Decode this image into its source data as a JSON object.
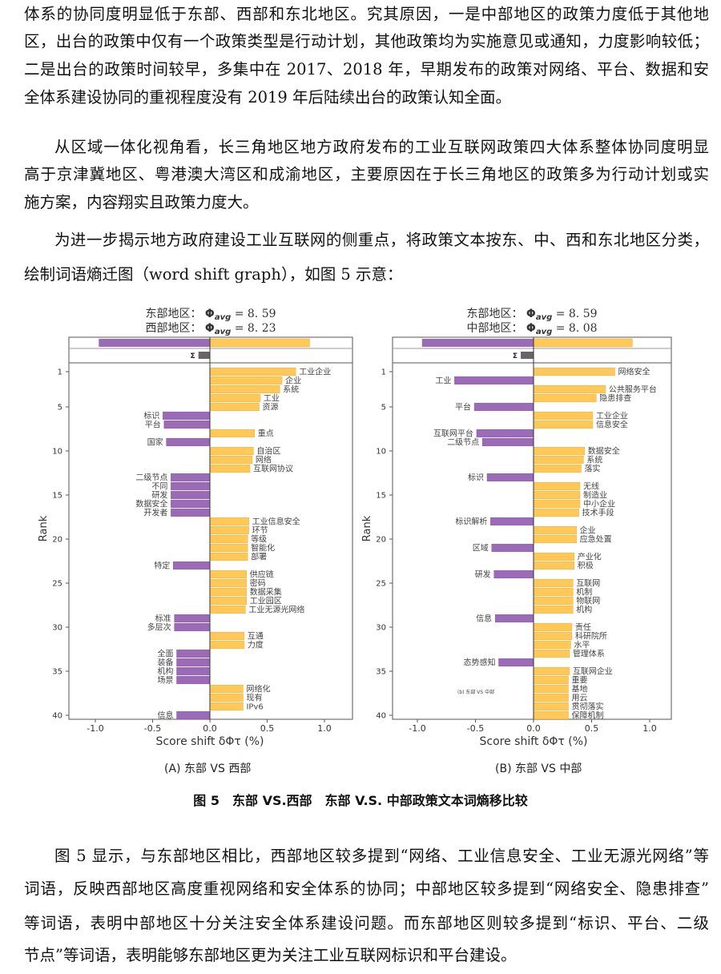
{
  "paragraph1": [
    "体系的协同度明显低于东部、西部和东北地区。究其原因，一是中部地区的政策力度低于其他地",
    "区，出台的政策中仅有一个政策类型是行动计划，其他政策均为实施意见或通知，力度影响较低；",
    "二是出台的政策时间较早，多集中在 2017、2018 年，早期发布的政策对网络、平台、数据和安",
    "全体系建设协同的重视程度没有 2019 年后陆续出台的政策认知全面。"
  ],
  "paragraph2": [
    "从区域一体化视角看，长三角地区地方政府发布的工业互联网政策四大体系整体协同度明显",
    "高于京津冀地区、粤港澳大湾区和成渝地区，主要原因在于长三角地区的政策多为行动计划或实",
    "施方案，内容翔实且政策力度大。"
  ],
  "paragraph3": [
    "为进一步揭示地方政府建设工业互联网的侧重点，将政策文本按东、中、西和东北地区分类，",
    "绘制词语熵迁图（word shift graph），如图 5 示意："
  ],
  "figure": {
    "subcaption_a": "(A) 东部 VS 西部",
    "subcaption_b": "(B) 东部 VS 中部",
    "caption": "图 5　东部 VS.西部　东部 V.S. 中部政策文本词熵移比较"
  },
  "paragraph4": [
    "图 5 显示，与东部地区相比，西部地区较多提到“网络、工业信息安全、工业无源光网络”等",
    "词语，反映西部地区高度重视网络和安全体系的协同；中部地区较多提到“网络安全、隐患排查”",
    "等词语，表明中部地区十分关注安全体系建设问题。而东部地区则较多提到“标识、平台、二级",
    "节点”等词语，表明能够东部地区更为关注工业互联网标识和平台建设。"
  ],
  "chart_data": [
    {
      "type": "bar",
      "orientation": "horizontal",
      "header": [
        {
          "region": "东部地区：",
          "symbol": "Φ",
          "subscript": "avg",
          "value": "= 8. 59"
        },
        {
          "region": "西部地区：",
          "symbol": "Φ",
          "subscript": "avg",
          "value": "= 8. 23"
        }
      ],
      "summary_bars": {
        "negative_total": -0.97,
        "positive_total": 0.87,
        "sigma_label": "Σ",
        "sigma": -0.1
      },
      "xlabel": "Score shift δΦτ (%)",
      "ylabel": "Rank",
      "xlim": [
        -1.23,
        1.24
      ],
      "xticks": [
        "-1.0",
        "-0.5",
        "0.0",
        "0.5",
        "1.0"
      ],
      "yticks": [
        1,
        5,
        10,
        15,
        20,
        25,
        30,
        35,
        40
      ],
      "colors": {
        "positive": "#FFC857",
        "negative": "#9B6BB8",
        "sigma": "#666666"
      },
      "items": [
        {
          "rank": 1,
          "word": "工业企业",
          "value": 0.75
        },
        {
          "rank": 2,
          "word": "企业",
          "value": 0.63
        },
        {
          "rank": 3,
          "word": "系统",
          "value": 0.61
        },
        {
          "rank": 4,
          "word": "工业",
          "value": 0.44
        },
        {
          "rank": 5,
          "word": "资源",
          "value": 0.43
        },
        {
          "rank": 6,
          "word": "标识",
          "value": -0.41
        },
        {
          "rank": 7,
          "word": "平台",
          "value": -0.4
        },
        {
          "rank": 8,
          "word": "重点",
          "value": 0.39
        },
        {
          "rank": 9,
          "word": "国家",
          "value": -0.38
        },
        {
          "rank": 10,
          "word": "自治区",
          "value": 0.38
        },
        {
          "rank": 11,
          "word": "网络",
          "value": 0.37
        },
        {
          "rank": 12,
          "word": "互联网协议",
          "value": 0.35
        },
        {
          "rank": 13,
          "word": "二级节点",
          "value": -0.34
        },
        {
          "rank": 14,
          "word": "不同",
          "value": -0.34
        },
        {
          "rank": 15,
          "word": "研发",
          "value": -0.34
        },
        {
          "rank": 16,
          "word": "数据安全",
          "value": -0.34
        },
        {
          "rank": 17,
          "word": "开发者",
          "value": -0.34
        },
        {
          "rank": 18,
          "word": "工业信息安全",
          "value": 0.34
        },
        {
          "rank": 19,
          "word": "环节",
          "value": 0.34
        },
        {
          "rank": 20,
          "word": "等级",
          "value": 0.33
        },
        {
          "rank": 21,
          "word": "智能化",
          "value": 0.33
        },
        {
          "rank": 22,
          "word": "部署",
          "value": 0.33
        },
        {
          "rank": 23,
          "word": "特定",
          "value": -0.32
        },
        {
          "rank": 24,
          "word": "供应链",
          "value": 0.32
        },
        {
          "rank": 25,
          "word": "密码",
          "value": 0.32
        },
        {
          "rank": 26,
          "word": "数据采集",
          "value": 0.32
        },
        {
          "rank": 27,
          "word": "工业园区",
          "value": 0.32
        },
        {
          "rank": 28,
          "word": "工业无源光网络",
          "value": 0.31
        },
        {
          "rank": 29,
          "word": "标准",
          "value": -0.31
        },
        {
          "rank": 30,
          "word": "多层次",
          "value": -0.31
        },
        {
          "rank": 31,
          "word": "互通",
          "value": 0.3
        },
        {
          "rank": 32,
          "word": "力度",
          "value": 0.3
        },
        {
          "rank": 33,
          "word": "全面",
          "value": -0.29
        },
        {
          "rank": 34,
          "word": "装备",
          "value": -0.29
        },
        {
          "rank": 35,
          "word": "机构",
          "value": -0.29
        },
        {
          "rank": 36,
          "word": "场景",
          "value": -0.29
        },
        {
          "rank": 37,
          "word": "网络化",
          "value": 0.29
        },
        {
          "rank": 38,
          "word": "现有",
          "value": 0.29
        },
        {
          "rank": 39,
          "word": "IPv6",
          "value": 0.29
        },
        {
          "rank": 40,
          "word": "信息",
          "value": -0.29
        }
      ]
    },
    {
      "type": "bar",
      "orientation": "horizontal",
      "header": [
        {
          "region": "东部地区：",
          "symbol": "Φ",
          "subscript": "avg",
          "value": "= 8. 59"
        },
        {
          "region": "中部地区：",
          "symbol": "Φ",
          "subscript": "avg",
          "value": "= 8. 08"
        }
      ],
      "summary_bars": {
        "negative_total": -0.96,
        "positive_total": 0.85,
        "sigma_label": "Σ",
        "sigma": -0.11
      },
      "annotation": "(b) 东部 VS 中部",
      "xlabel": "Score shift δΦτ (%)",
      "ylabel": "Rank",
      "xlim": [
        -1.22,
        1.19
      ],
      "xticks": [
        "-1.0",
        "-0.5",
        "0.0",
        "0.5",
        "1.0"
      ],
      "yticks": [
        1,
        5,
        10,
        15,
        20,
        25,
        30,
        35,
        40
      ],
      "colors": {
        "positive": "#FFC857",
        "negative": "#9B6BB8",
        "sigma": "#666666"
      },
      "items": [
        {
          "rank": 1,
          "word": "网络安全",
          "value": 0.7
        },
        {
          "rank": 2,
          "word": "工业",
          "value": -0.68
        },
        {
          "rank": 3,
          "word": "公共服务平台",
          "value": 0.62
        },
        {
          "rank": 4,
          "word": "隐患排查",
          "value": 0.54
        },
        {
          "rank": 5,
          "word": "平台",
          "value": -0.51
        },
        {
          "rank": 6,
          "word": "工业企业",
          "value": 0.51
        },
        {
          "rank": 7,
          "word": "信息安全",
          "value": 0.51
        },
        {
          "rank": 8,
          "word": "互联网平台",
          "value": -0.49
        },
        {
          "rank": 9,
          "word": "二级节点",
          "value": -0.44
        },
        {
          "rank": 10,
          "word": "数据安全",
          "value": 0.44
        },
        {
          "rank": 11,
          "word": "系统",
          "value": 0.43
        },
        {
          "rank": 12,
          "word": "落实",
          "value": 0.41
        },
        {
          "rank": 13,
          "word": "标识",
          "value": -0.4
        },
        {
          "rank": 14,
          "word": "无线",
          "value": 0.4
        },
        {
          "rank": 15,
          "word": "制造业",
          "value": 0.4
        },
        {
          "rank": 16,
          "word": "中小企业",
          "value": 0.4
        },
        {
          "rank": 17,
          "word": "技术手段",
          "value": 0.39
        },
        {
          "rank": 18,
          "word": "标识解析",
          "value": -0.37
        },
        {
          "rank": 19,
          "word": "企业",
          "value": 0.37
        },
        {
          "rank": 20,
          "word": "应急处置",
          "value": 0.37
        },
        {
          "rank": 21,
          "word": "区域",
          "value": -0.36
        },
        {
          "rank": 22,
          "word": "产业化",
          "value": 0.35
        },
        {
          "rank": 23,
          "word": "积极",
          "value": 0.35
        },
        {
          "rank": 24,
          "word": "研发",
          "value": -0.34
        },
        {
          "rank": 25,
          "word": "互联网",
          "value": 0.34
        },
        {
          "rank": 26,
          "word": "机制",
          "value": 0.34
        },
        {
          "rank": 27,
          "word": "物联网",
          "value": 0.34
        },
        {
          "rank": 28,
          "word": "机构",
          "value": 0.34
        },
        {
          "rank": 29,
          "word": "信息",
          "value": -0.33
        },
        {
          "rank": 30,
          "word": "责任",
          "value": 0.33
        },
        {
          "rank": 31,
          "word": "科研院所",
          "value": 0.33
        },
        {
          "rank": 32,
          "word": "水平",
          "value": 0.32
        },
        {
          "rank": 33,
          "word": "管理体系",
          "value": 0.31
        },
        {
          "rank": 34,
          "word": "态势感知",
          "value": -0.3
        },
        {
          "rank": 35,
          "word": "互联网企业",
          "value": 0.31
        },
        {
          "rank": 36,
          "word": "重要",
          "value": 0.3
        },
        {
          "rank": 37,
          "word": "基地",
          "value": 0.3
        },
        {
          "rank": 38,
          "word": "用云",
          "value": 0.3
        },
        {
          "rank": 39,
          "word": "贯彻落实",
          "value": 0.3
        },
        {
          "rank": 40,
          "word": "保障机制",
          "value": 0.3
        }
      ]
    }
  ]
}
